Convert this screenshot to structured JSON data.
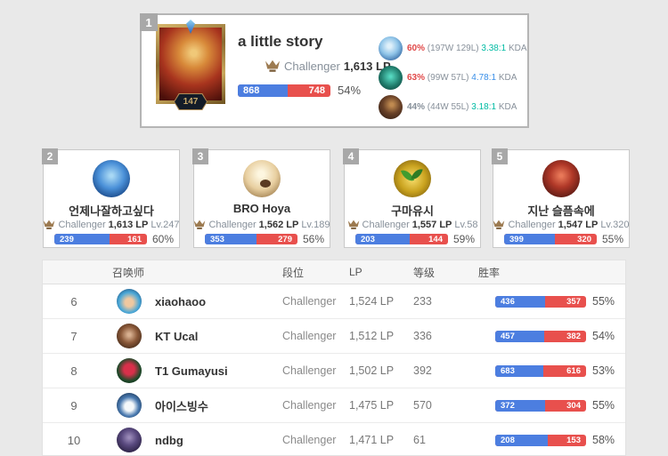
{
  "colors": {
    "win_blue": "#4c7ee0",
    "lose_red": "#e8504d",
    "kda_teal": "#00bba3",
    "kda_blue": "#3a8fe8",
    "winrate_red": "#e04848",
    "badge_gray": "#a8a8a8"
  },
  "top_player": {
    "rank": "1",
    "name": "a little story",
    "summoner_level": "147",
    "tier": "Challenger",
    "lp": "1,613 LP",
    "wins": "868",
    "losses": "748",
    "win_rate": "54%",
    "champions": [
      {
        "win_rate": "60%",
        "record": "(197W 129L)",
        "kda": "3.38:1",
        "kda_label": "KDA"
      },
      {
        "win_rate": "63%",
        "record": "(99W 57L)",
        "kda": "4.78:1",
        "kda_label": "KDA"
      },
      {
        "win_rate": "44%",
        "record": "(44W 55L)",
        "kda": "3.18:1",
        "kda_label": "KDA"
      }
    ]
  },
  "cards": [
    {
      "rank": "2",
      "name": "언제나잘하고싶다",
      "tier": "Challenger",
      "lp": "1,613 LP",
      "level": "Lv.247",
      "wins": "239",
      "losses": "161",
      "win_rate": "60%"
    },
    {
      "rank": "3",
      "name": "BRO Hoya",
      "tier": "Challenger",
      "lp": "1,562 LP",
      "level": "Lv.189",
      "wins": "353",
      "losses": "279",
      "win_rate": "56%"
    },
    {
      "rank": "4",
      "name": "구마유시",
      "tier": "Challenger",
      "lp": "1,557 LP",
      "level": "Lv.58",
      "wins": "203",
      "losses": "144",
      "win_rate": "59%"
    },
    {
      "rank": "5",
      "name": "지난 슬픔속에",
      "tier": "Challenger",
      "lp": "1,547 LP",
      "level": "Lv.320",
      "wins": "399",
      "losses": "320",
      "win_rate": "55%"
    }
  ],
  "table": {
    "headers": {
      "summoner": "召唤师",
      "tier": "段位",
      "lp": "LP",
      "level": "等级",
      "win_rate": "胜率"
    },
    "rows": [
      {
        "rank": "6",
        "name": "xiaohaoo",
        "tier": "Challenger",
        "lp": "1,524 LP",
        "level": "233",
        "wins": "436",
        "losses": "357",
        "win_rate": "55%"
      },
      {
        "rank": "7",
        "name": "KT Ucal",
        "tier": "Challenger",
        "lp": "1,512 LP",
        "level": "336",
        "wins": "457",
        "losses": "382",
        "win_rate": "54%"
      },
      {
        "rank": "8",
        "name": "T1 Gumayusi",
        "tier": "Challenger",
        "lp": "1,502 LP",
        "level": "392",
        "wins": "683",
        "losses": "616",
        "win_rate": "53%"
      },
      {
        "rank": "9",
        "name": "아이스빙수",
        "tier": "Challenger",
        "lp": "1,475 LP",
        "level": "570",
        "wins": "372",
        "losses": "304",
        "win_rate": "55%"
      },
      {
        "rank": "10",
        "name": "ndbg",
        "tier": "Challenger",
        "lp": "1,471 LP",
        "level": "61",
        "wins": "208",
        "losses": "153",
        "win_rate": "58%"
      }
    ]
  }
}
